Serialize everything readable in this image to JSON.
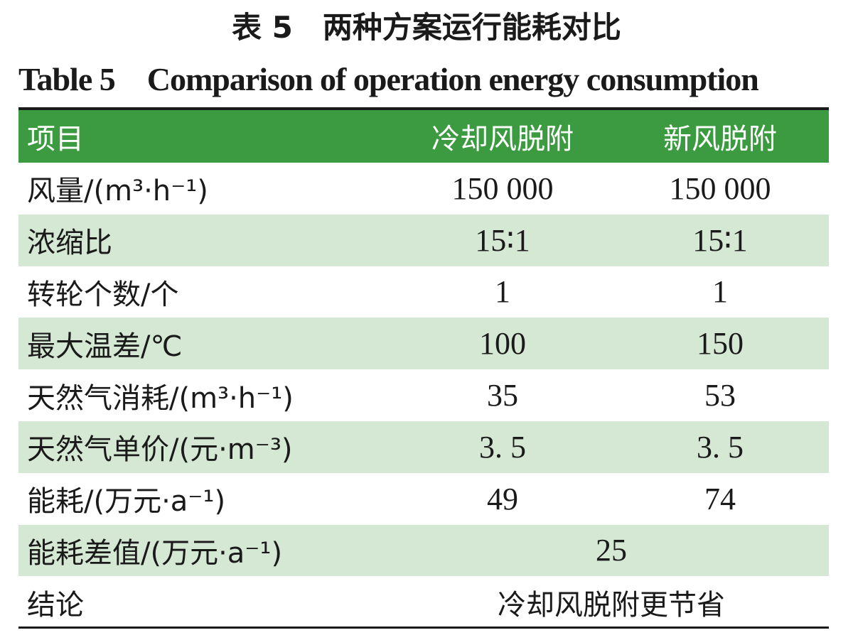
{
  "title": {
    "cn": "表 5　两种方案运行能耗对比",
    "en": "Table 5　Comparison of operation energy consumption"
  },
  "table": {
    "headers": [
      "项目",
      "冷却风脱附",
      "新风脱附"
    ],
    "rows": [
      {
        "label": "风量/(m³·h⁻¹)",
        "values": [
          "150 000",
          "150 000"
        ]
      },
      {
        "label": "浓缩比",
        "values": [
          "15∶1",
          "15∶1"
        ]
      },
      {
        "label": "转轮个数/个",
        "values": [
          "1",
          "1"
        ]
      },
      {
        "label": "最大温差/℃",
        "values": [
          "100",
          "150"
        ]
      },
      {
        "label": "天然气消耗/(m³·h⁻¹)",
        "values": [
          "35",
          "53"
        ]
      },
      {
        "label": "天然气单价/(元·m⁻³)",
        "values": [
          "3. 5",
          "3. 5"
        ]
      },
      {
        "label": "能耗/(万元·a⁻¹)",
        "values": [
          "49",
          "74"
        ]
      },
      {
        "label": "能耗差值/(万元·a⁻¹)",
        "merged": "25"
      },
      {
        "label": "结论",
        "merged": "冷却风脱附更节省"
      }
    ]
  },
  "colors": {
    "header_bg": "#3c9a40",
    "header_text": "#ffffff",
    "stripe_bg": "#d5e8d3",
    "rule": "#1a1a1a"
  }
}
